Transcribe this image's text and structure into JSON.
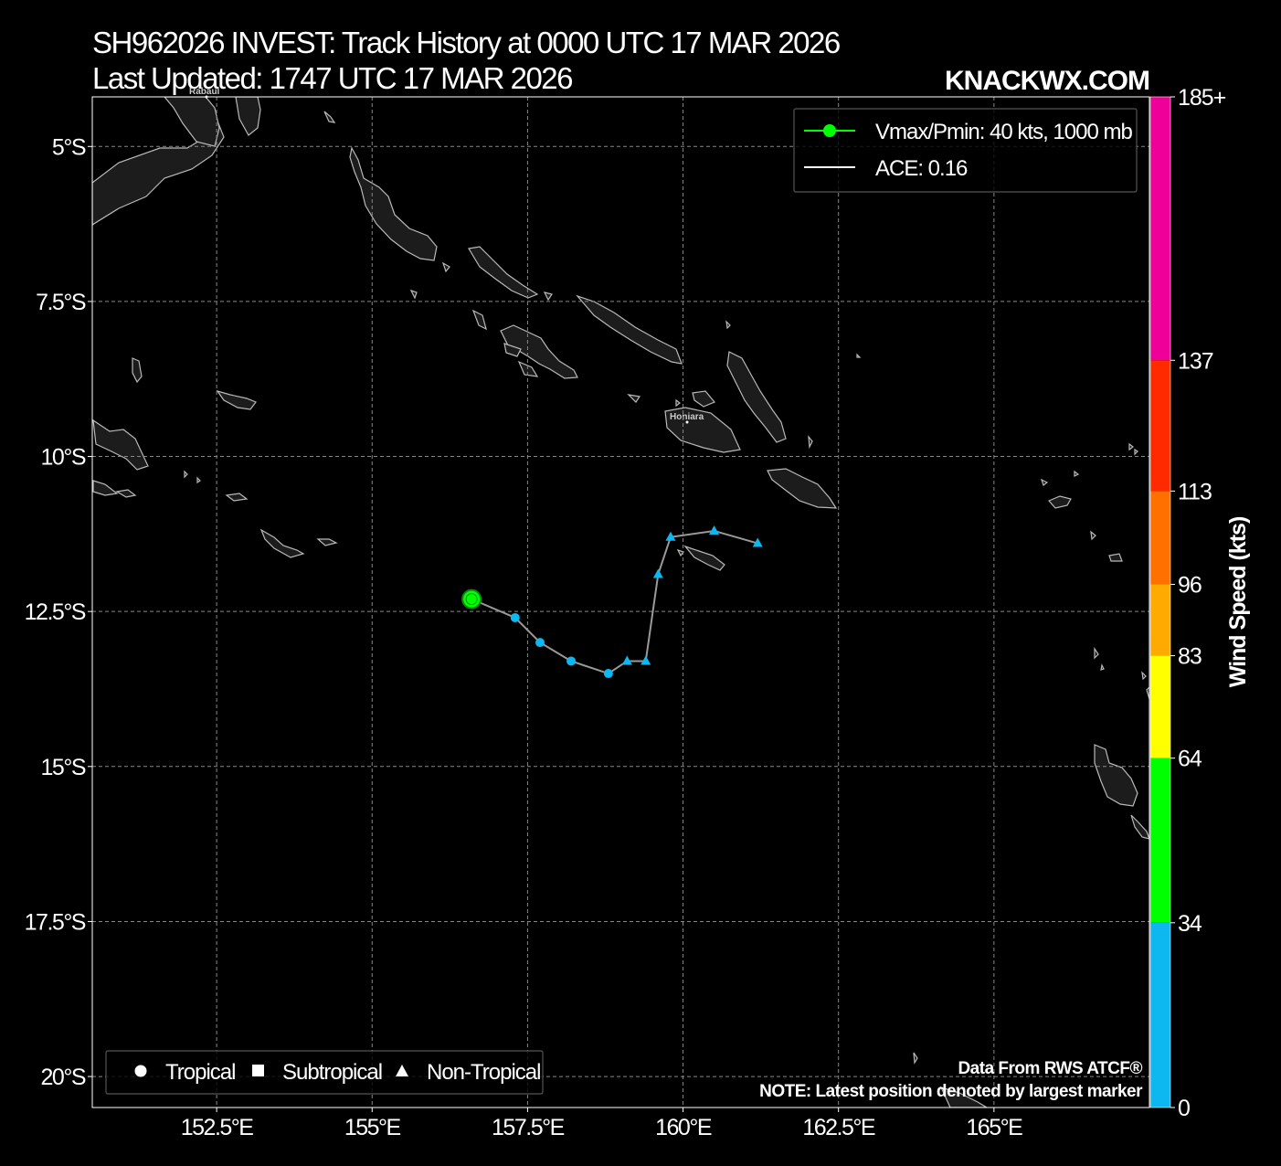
{
  "title_line1": "SH962026 INVEST: Track History at 0000 UTC 17 MAR 2026",
  "title_line2": "Last Updated: 1747 UTC 17 MAR 2026",
  "brand": "KNACKWX.COM",
  "legend": {
    "vmax_label": "Vmax/Pmin: 40 kts, 1000 mb",
    "ace_label": "ACE: 0.16"
  },
  "marker_legend": {
    "tropical": "Tropical",
    "subtropical": "Subtropical",
    "non_tropical": "Non-Tropical"
  },
  "footer": {
    "source": "Data From RWS ATCF®",
    "note": "NOTE: Latest position denoted by largest marker"
  },
  "places": {
    "rabaul": "Rabaul",
    "honiara": "Honiara"
  },
  "colors": {
    "track_line": "#9a9a9a",
    "latest_marker": "#00ff00",
    "td_marker": "#00b4f0"
  },
  "chart_data": {
    "type": "scatter",
    "xlim": [
      150.5,
      167.5
    ],
    "ylim": [
      -20.5,
      -4.2
    ],
    "x_ticks": [
      152.5,
      155,
      157.5,
      160,
      162.5,
      165
    ],
    "x_tick_labels": [
      "152.5°E",
      "155°E",
      "157.5°E",
      "160°E",
      "162.5°E",
      "165°E"
    ],
    "y_ticks": [
      -5,
      -7.5,
      -10,
      -12.5,
      -15,
      -17.5,
      -20
    ],
    "y_tick_labels": [
      "5°S",
      "7.5°S",
      "10°S",
      "12.5°S",
      "15°S",
      "17.5°S",
      "20°S"
    ],
    "grid": true,
    "legend_position": "top-right",
    "track": [
      {
        "lon": 161.2,
        "lat": -11.4,
        "type": "non-tropical",
        "vmax": 25
      },
      {
        "lon": 160.5,
        "lat": -11.2,
        "type": "non-tropical",
        "vmax": 25
      },
      {
        "lon": 159.8,
        "lat": -11.3,
        "type": "non-tropical",
        "vmax": 25
      },
      {
        "lon": 159.6,
        "lat": -11.9,
        "type": "non-tropical",
        "vmax": 25
      },
      {
        "lon": 159.4,
        "lat": -13.3,
        "type": "non-tropical",
        "vmax": 25
      },
      {
        "lon": 159.1,
        "lat": -13.3,
        "type": "non-tropical",
        "vmax": 25
      },
      {
        "lon": 158.8,
        "lat": -13.5,
        "type": "tropical",
        "vmax": 25
      },
      {
        "lon": 158.2,
        "lat": -13.3,
        "type": "tropical",
        "vmax": 25
      },
      {
        "lon": 157.7,
        "lat": -13.0,
        "type": "tropical",
        "vmax": 25
      },
      {
        "lon": 157.3,
        "lat": -12.6,
        "type": "tropical",
        "vmax": 25
      },
      {
        "lon": 156.6,
        "lat": -12.3,
        "type": "tropical",
        "vmax": 40
      }
    ],
    "colorbar": {
      "label": "Wind Speed (kts)",
      "ticks": [
        {
          "value": 0,
          "label": "0"
        },
        {
          "value": 34,
          "label": "34"
        },
        {
          "value": 64,
          "label": "64"
        },
        {
          "value": 83,
          "label": "83"
        },
        {
          "value": 96,
          "label": "96"
        },
        {
          "value": 113,
          "label": "113"
        },
        {
          "value": 137,
          "label": "137"
        },
        {
          "value": 185,
          "label": "185+"
        }
      ],
      "bands": [
        {
          "from": 0,
          "to": 34,
          "color": "#0db7ef"
        },
        {
          "from": 34,
          "to": 64,
          "color": "#00ff00"
        },
        {
          "from": 64,
          "to": 83,
          "color": "#ffff00"
        },
        {
          "from": 83,
          "to": 96,
          "color": "#ffaa00"
        },
        {
          "from": 96,
          "to": 113,
          "color": "#ff7000"
        },
        {
          "from": 113,
          "to": 137,
          "color": "#ff2a00"
        },
        {
          "from": 137,
          "to": 185,
          "color": "#ee0099"
        }
      ]
    }
  }
}
